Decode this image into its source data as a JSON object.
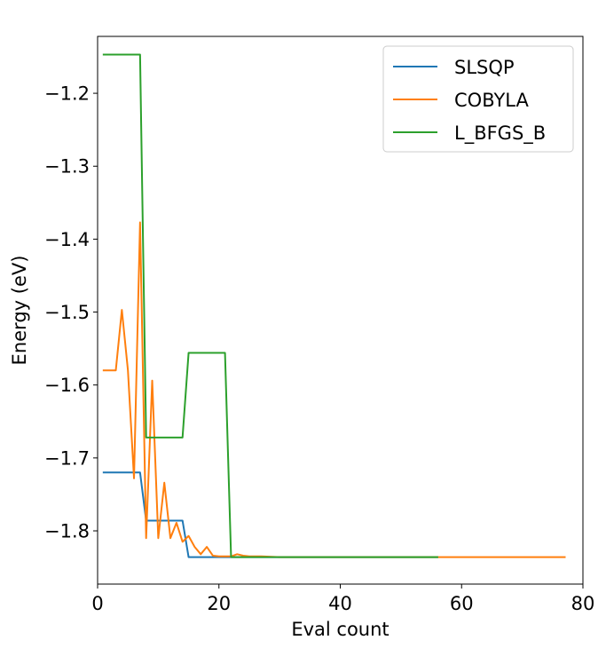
{
  "chart_data": {
    "type": "line",
    "title": "",
    "xlabel": "Eval count",
    "ylabel": "Energy (eV)",
    "xlim": [
      0,
      80
    ],
    "ylim": [
      -1.873,
      -1.122
    ],
    "xticks": [
      0,
      20,
      40,
      60,
      80
    ],
    "xtick_labels": [
      "0",
      "20",
      "40",
      "60",
      "80"
    ],
    "yticks": [
      -1.2,
      -1.3,
      -1.4,
      -1.5,
      -1.6,
      -1.7,
      -1.8
    ],
    "ytick_labels": [
      "−1.2",
      "−1.3",
      "−1.4",
      "−1.5",
      "−1.6",
      "−1.7",
      "−1.8"
    ],
    "grid": false,
    "legend_position": "top-right",
    "series": [
      {
        "name": "SLSQP",
        "color": "#1f77b4",
        "x": [
          1,
          2,
          3,
          4,
          5,
          6,
          7,
          8,
          9,
          10,
          11,
          12,
          13,
          14,
          15,
          16,
          17,
          18,
          19,
          20,
          22,
          25,
          30,
          40,
          50,
          56
        ],
        "y": [
          -1.72,
          -1.72,
          -1.72,
          -1.72,
          -1.72,
          -1.72,
          -1.72,
          -1.786,
          -1.786,
          -1.786,
          -1.786,
          -1.786,
          -1.786,
          -1.786,
          -1.836,
          -1.836,
          -1.836,
          -1.836,
          -1.836,
          -1.836,
          -1.836,
          -1.836,
          -1.836,
          -1.836,
          -1.836,
          -1.836
        ]
      },
      {
        "name": "COBYLA",
        "color": "#ff7f0e",
        "x": [
          1,
          2,
          3,
          4,
          5,
          6,
          7,
          8,
          9,
          10,
          11,
          12,
          13,
          14,
          15,
          16,
          17,
          18,
          19,
          20,
          21,
          22,
          23,
          24,
          25,
          27,
          30,
          35,
          40,
          50,
          60,
          70,
          77
        ],
        "y": [
          -1.58,
          -1.58,
          -1.58,
          -1.497,
          -1.58,
          -1.728,
          -1.377,
          -1.81,
          -1.594,
          -1.81,
          -1.734,
          -1.81,
          -1.789,
          -1.815,
          -1.807,
          -1.822,
          -1.832,
          -1.822,
          -1.834,
          -1.835,
          -1.835,
          -1.835,
          -1.832,
          -1.834,
          -1.835,
          -1.835,
          -1.836,
          -1.836,
          -1.836,
          -1.836,
          -1.836,
          -1.836,
          -1.836
        ]
      },
      {
        "name": "L_BFGS_B",
        "color": "#2ca02c",
        "x": [
          1,
          2,
          3,
          4,
          5,
          6,
          7,
          8,
          9,
          10,
          11,
          12,
          13,
          14,
          15,
          16,
          17,
          18,
          19,
          20,
          21,
          22,
          23,
          25,
          30,
          40,
          50,
          56
        ],
        "y": [
          -1.147,
          -1.147,
          -1.147,
          -1.147,
          -1.147,
          -1.147,
          -1.147,
          -1.672,
          -1.672,
          -1.672,
          -1.672,
          -1.672,
          -1.672,
          -1.672,
          -1.556,
          -1.556,
          -1.556,
          -1.556,
          -1.556,
          -1.556,
          -1.556,
          -1.836,
          -1.836,
          -1.836,
          -1.836,
          -1.836,
          -1.836,
          -1.836
        ]
      }
    ]
  }
}
